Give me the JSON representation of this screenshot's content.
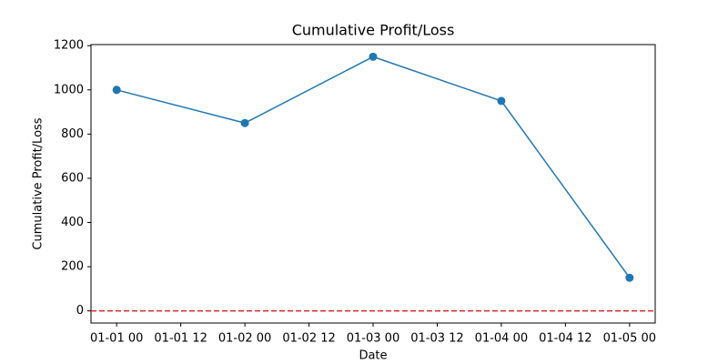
{
  "chart_data": {
    "type": "line",
    "title": "Cumulative Profit/Loss",
    "x_label": "Date",
    "y_label": "Cumulative Profit/Loss",
    "x": [
      "01-01 00",
      "01-02 00",
      "01-03 00",
      "01-04 00",
      "01-05 00"
    ],
    "series": [
      {
        "name": "Cumulative Profit/Loss",
        "color": "#1f77b4",
        "values": [
          1000,
          850,
          1150,
          950,
          150
        ]
      }
    ],
    "xlim": [
      "12-31 19:12",
      "01-05 04:48"
    ],
    "xticks": [
      "01-01 00",
      "01-01 12",
      "01-02 00",
      "01-02 12",
      "01-03 00",
      "01-03 12",
      "01-04 00",
      "01-04 12",
      "01-05 00"
    ],
    "ylim": [
      -55,
      1205
    ],
    "yticks": [
      0,
      200,
      400,
      600,
      800,
      1000,
      1200
    ],
    "reference_line": {
      "value": 0,
      "color": "#d62728",
      "style": "dashed"
    },
    "grid": false
  }
}
